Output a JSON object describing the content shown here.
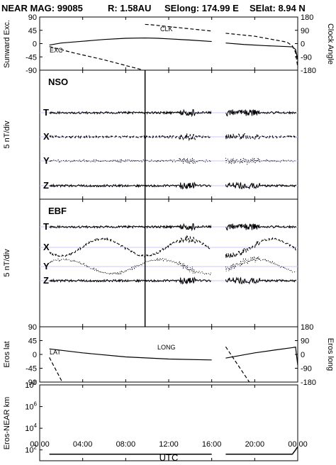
{
  "header": {
    "title": "NEAR MAG: 99085",
    "r": "R: 1.58AU",
    "selong": "SElong:  174.99 E",
    "selat": "SElat:    8.94 N"
  },
  "x_axis": {
    "label": "UTC",
    "ticks": [
      "00:00",
      "04:00",
      "08:00",
      "12:00",
      "16:00",
      "20:00",
      "00:00"
    ],
    "range_hours": [
      0,
      24
    ]
  },
  "chart_data": [
    {
      "type": "line",
      "panel": "sunward-clock",
      "ylabel_left": "Sunward Exc.",
      "ylabel_right": "Clock Angle",
      "left_ticks": [
        "90",
        "45",
        "0",
        "-45",
        "-90"
      ],
      "right_ticks": [
        "180",
        "90",
        "0",
        "-90",
        "-180"
      ],
      "ylim_left": [
        -90,
        90
      ],
      "ylim_right": [
        -180,
        180
      ],
      "gap_hours": [
        16,
        17.3
      ],
      "series": [
        {
          "name": "EXC",
          "axis": "left",
          "style": "solid",
          "x": [
            0.9,
            2,
            4,
            6,
            8,
            9.8,
            11,
            12,
            14,
            16,
            17.3,
            19,
            21,
            23,
            23.5,
            23.8,
            24
          ],
          "y": [
            -5,
            2,
            8,
            14,
            18,
            19,
            18,
            16,
            12,
            7,
            2,
            -3,
            -7,
            -10,
            -11,
            -20,
            -55
          ]
        },
        {
          "name": "CLK",
          "axis": "right",
          "style": "dashed",
          "x": [
            0.9,
            3,
            6,
            9.4,
            9.8,
            10.3,
            12,
            16,
            17.3,
            20,
            23,
            23.5,
            23.8,
            24
          ],
          "y": [
            -20,
            -60,
            -110,
            -175,
            130,
            128,
            115,
            85,
            70,
            50,
            10,
            -15,
            -60,
            -160
          ]
        }
      ]
    },
    {
      "type": "line",
      "panel": "NSO",
      "title": "NSO",
      "ylabel": "5 nT/div",
      "series": [
        {
          "name": "T",
          "style": "solid"
        },
        {
          "name": "X",
          "style": "dashed"
        },
        {
          "name": "Y",
          "style": "dotted"
        },
        {
          "name": "Z",
          "style": "solid"
        }
      ]
    },
    {
      "type": "line",
      "panel": "EBF",
      "title": "EBF",
      "ylabel": "5 nT/div",
      "series": [
        {
          "name": "T",
          "style": "solid"
        },
        {
          "name": "X",
          "style": "dashed"
        },
        {
          "name": "Y",
          "style": "dotted"
        },
        {
          "name": "Z",
          "style": "solid"
        }
      ]
    },
    {
      "type": "line",
      "panel": "eros-lat-long",
      "ylabel_left": "Eros lat",
      "ylabel_right": "Eros long",
      "left_ticks": [
        "90",
        "45",
        "0",
        "-45",
        "-90"
      ],
      "right_ticks": [
        "180",
        "90",
        "0",
        "-90",
        "-180"
      ],
      "ylim_left": [
        -90,
        90
      ],
      "ylim_right": [
        -180,
        180
      ],
      "gap_hours": [
        16,
        17.3
      ],
      "series": [
        {
          "name": "LAT",
          "axis": "left",
          "style": "solid",
          "x": [
            0.9,
            4,
            8,
            12,
            16,
            17.3,
            20,
            22,
            23.5,
            23.8,
            24
          ],
          "y": [
            18,
            5,
            -8,
            -15,
            -18,
            -12,
            5,
            15,
            22,
            24,
            -35
          ]
        },
        {
          "name": "LONG",
          "axis": "right",
          "style": "dashed",
          "x": [
            0.9,
            2.1,
            2.15,
            5.3,
            5.35,
            8.5,
            8.55,
            11.7,
            11.75,
            15.7,
            17.3,
            19.5,
            19.55,
            23.5
          ],
          "y": [
            -20,
            -180,
            180,
            -180,
            180,
            -180,
            180,
            -180,
            180,
            -140,
            50,
            -180,
            180,
            -130
          ]
        }
      ]
    },
    {
      "type": "line",
      "panel": "eros-near-distance",
      "ylabel": "Eros-NEAR km",
      "yscale": "log",
      "ylim": [
        10,
        100000000
      ],
      "ticks": [
        "10^8",
        "10^6",
        "10^4",
        "10^2"
      ],
      "series": [
        {
          "name": "Eros-NEAR km",
          "x": [
            0.9,
            16,
            17.3,
            23.5,
            23.8,
            24
          ],
          "y": [
            40,
            40,
            40,
            40,
            100,
            200
          ]
        }
      ]
    }
  ]
}
